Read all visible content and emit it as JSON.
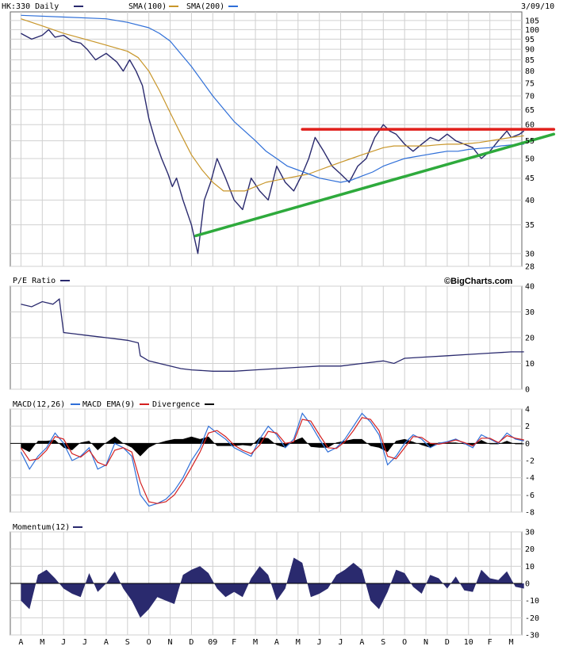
{
  "colors": {
    "price": "#2a2a6e",
    "sma100": "#c8962a",
    "sma200": "#2f6fd8",
    "resistance": "#e0201c",
    "support": "#2eaa3c",
    "macd": "#2f6fd8",
    "macd_ema": "#d42020",
    "divergence": "#000000",
    "momentum": "#2a2a6e",
    "grid": "#d0d0d0"
  },
  "header": {
    "symbol_label": "HK:330 Daily",
    "sma100_label": "SMA(100)",
    "sma200_label": "SMA(200)",
    "date": "3/09/10"
  },
  "pe_panel": {
    "title": "P/E Ratio",
    "brand": "©BigCharts.com"
  },
  "macd_panel": {
    "title": "MACD(12,26)",
    "ema_label": "MACD EMA(9)",
    "divergence_label": "Divergence"
  },
  "momentum_panel": {
    "title": "Momentum(12)"
  },
  "chart_data": [
    {
      "type": "line",
      "panel": "price",
      "title": "HK:330 Daily",
      "scale": "log",
      "ylim": [
        28,
        110
      ],
      "yticks": [
        28,
        30,
        35,
        40,
        45,
        50,
        55,
        60,
        65,
        70,
        75,
        80,
        85,
        90,
        95,
        100,
        105
      ],
      "x_labels": [
        "A",
        "M",
        "J",
        "J",
        "A",
        "S",
        "O",
        "N",
        "D",
        "09",
        "F",
        "M",
        "A",
        "M",
        "J",
        "J",
        "A",
        "S",
        "O",
        "N",
        "D",
        "10",
        "F",
        "M"
      ],
      "series": [
        {
          "name": "HK:330 Daily",
          "key": "price",
          "x": [
            0,
            0.5,
            1,
            1.3,
            1.6,
            2,
            2.4,
            2.8,
            3.1,
            3.5,
            4,
            4.5,
            4.8,
            5.1,
            5.4,
            5.7,
            6,
            6.3,
            6.6,
            6.9,
            7.1,
            7.3,
            7.6,
            8,
            8.3,
            8.6,
            8.9,
            9.2,
            9.6,
            10,
            10.4,
            10.8,
            11.2,
            11.6,
            12,
            12.4,
            12.8,
            13.2,
            13.5,
            13.8,
            14.2,
            14.6,
            15,
            15.4,
            15.8,
            16.2,
            16.6,
            17,
            17.3,
            17.6,
            18,
            18.4,
            18.8,
            19.2,
            19.6,
            20,
            20.4,
            20.8,
            21.2,
            21.6,
            22,
            22.4,
            22.8,
            23,
            23.4,
            23.6
          ],
          "values": [
            98,
            95,
            97,
            100,
            96,
            97,
            94,
            93,
            90,
            85,
            88,
            84,
            80,
            85,
            80,
            74,
            62,
            55,
            50,
            46,
            43,
            45,
            40,
            35,
            30,
            40,
            44,
            50,
            45,
            40,
            38,
            45,
            42,
            40,
            48,
            44,
            42,
            46,
            50,
            56,
            52,
            48,
            46,
            44,
            48,
            50,
            56,
            60,
            58,
            57,
            54,
            52,
            54,
            56,
            55,
            57,
            55,
            54,
            53,
            50,
            52,
            55,
            58,
            56,
            57,
            58
          ]
        },
        {
          "name": "SMA(100)",
          "key": "sma100",
          "x": [
            0,
            1,
            2,
            3,
            4,
            5,
            5.5,
            6,
            6.5,
            7,
            7.5,
            8,
            8.5,
            9,
            9.5,
            10,
            10.5,
            11,
            11.5,
            12,
            12.5,
            13,
            13.5,
            14,
            14.5,
            15,
            15.5,
            16,
            16.5,
            17,
            17.5,
            18,
            18.5,
            19,
            19.5,
            20,
            20.5,
            21,
            21.5,
            22,
            22.5,
            23,
            23.6
          ],
          "values": [
            106,
            102,
            98,
            95,
            92,
            89,
            86,
            80,
            72,
            64,
            57,
            51,
            47,
            44,
            42,
            42,
            42,
            43,
            44,
            44.5,
            45,
            45.5,
            46,
            47,
            48,
            49,
            50,
            51,
            52,
            53,
            53.5,
            53.5,
            53.5,
            53.5,
            53.8,
            54,
            54,
            54.2,
            54.5,
            55,
            55.5,
            56,
            56.5
          ]
        },
        {
          "name": "SMA(200)",
          "key": "sma200",
          "x": [
            0,
            2,
            4,
            5,
            6,
            6.5,
            7,
            8,
            9,
            10,
            11,
            11.5,
            12,
            12.5,
            13,
            13.5,
            14,
            14.5,
            15,
            15.5,
            16,
            16.5,
            17,
            17.5,
            18,
            18.5,
            19,
            19.5,
            20,
            20.5,
            21,
            21.5,
            22,
            22.5,
            23,
            23.6
          ],
          "values": [
            108,
            107,
            106,
            104,
            101,
            98,
            94,
            82,
            70,
            61,
            55,
            52,
            50,
            48,
            47,
            46,
            45,
            44.5,
            44,
            44.5,
            45.5,
            46.5,
            48,
            49,
            50,
            50.5,
            51,
            51.5,
            52,
            52,
            52.5,
            52.8,
            53,
            53.5,
            53.8,
            54
          ]
        }
      ],
      "annotations": [
        {
          "type": "resistance-line",
          "x": [
            13.2,
            25
          ],
          "y": [
            58.5,
            58.5
          ]
        },
        {
          "type": "support-line",
          "x": [
            8.2,
            25
          ],
          "y": [
            33,
            57
          ]
        }
      ]
    },
    {
      "type": "line",
      "panel": "pe",
      "title": "P/E Ratio",
      "ylim": [
        0,
        40
      ],
      "yticks": [
        0,
        10,
        20,
        30,
        40
      ],
      "series": [
        {
          "name": "P/E Ratio",
          "key": "pe",
          "x": [
            0,
            0.5,
            1,
            1.5,
            1.8,
            2,
            2.5,
            3,
            4,
            5,
            5.5,
            5.6,
            6,
            7,
            7.5,
            8,
            9,
            10,
            11,
            12,
            13,
            14,
            15,
            16,
            17,
            17.5,
            18,
            19,
            20,
            21,
            22,
            23,
            23.6
          ],
          "values": [
            33,
            32,
            34,
            33,
            35,
            22,
            21.5,
            21,
            20,
            19,
            18,
            13,
            11,
            9,
            8,
            7.5,
            7,
            7,
            7.5,
            8,
            8.5,
            9,
            9,
            10,
            11,
            10,
            12,
            12.5,
            13,
            13.5,
            14,
            14.5,
            14.5
          ]
        }
      ]
    },
    {
      "type": "line",
      "panel": "macd",
      "title": "MACD(12,26)",
      "ylim": [
        -8,
        4
      ],
      "yticks": [
        -8,
        -6,
        -4,
        -2,
        0,
        2,
        4
      ],
      "series": [
        {
          "name": "MACD(12,26)",
          "key": "macd",
          "x": [
            0,
            0.4,
            0.8,
            1.2,
            1.6,
            2,
            2.4,
            2.8,
            3.2,
            3.6,
            4,
            4.4,
            4.8,
            5.2,
            5.6,
            6,
            6.4,
            6.8,
            7.2,
            7.6,
            8,
            8.4,
            8.8,
            9.2,
            9.6,
            10,
            10.4,
            10.8,
            11.2,
            11.6,
            12,
            12.4,
            12.8,
            13.2,
            13.6,
            14,
            14.4,
            14.8,
            15.2,
            15.6,
            16,
            16.4,
            16.8,
            17.2,
            17.6,
            18,
            18.4,
            18.8,
            19.2,
            19.6,
            20,
            20.4,
            20.8,
            21.2,
            21.6,
            22,
            22.4,
            22.8,
            23.2,
            23.6
          ],
          "values": [
            -1,
            -3,
            -1.5,
            -0.5,
            1.2,
            0,
            -2,
            -1.5,
            -0.5,
            -3,
            -2.5,
            0,
            -0.5,
            -1.5,
            -6,
            -7.3,
            -7,
            -6.5,
            -5.5,
            -4,
            -2,
            -0.5,
            2,
            1.2,
            0.5,
            -0.5,
            -1,
            -1.5,
            0.5,
            2,
            1,
            -0.5,
            0.5,
            3.5,
            2.2,
            0.5,
            -1,
            -0.5,
            0.5,
            2,
            3.5,
            2.5,
            1,
            -2.5,
            -1.5,
            0,
            1,
            0.5,
            -0.5,
            0,
            0.2,
            0.5,
            0,
            -0.5,
            1,
            0.5,
            0,
            1.2,
            0.5,
            0.3
          ]
        },
        {
          "name": "MACD EMA(9)",
          "key": "macd_ema",
          "x": [
            0,
            0.4,
            0.8,
            1.2,
            1.6,
            2,
            2.4,
            2.8,
            3.2,
            3.6,
            4,
            4.4,
            4.8,
            5.2,
            5.6,
            6,
            6.4,
            6.8,
            7.2,
            7.6,
            8,
            8.4,
            8.8,
            9.2,
            9.6,
            10,
            10.4,
            10.8,
            11.2,
            11.6,
            12,
            12.4,
            12.8,
            13.2,
            13.6,
            14,
            14.4,
            14.8,
            15.2,
            15.6,
            16,
            16.4,
            16.8,
            17.2,
            17.6,
            18,
            18.4,
            18.8,
            19.2,
            19.6,
            20,
            20.4,
            20.8,
            21.2,
            21.6,
            22,
            22.4,
            22.8,
            23.2,
            23.6
          ],
          "values": [
            -0.5,
            -2,
            -1.8,
            -0.8,
            0.8,
            0.5,
            -1.2,
            -1.6,
            -0.8,
            -2.2,
            -2.6,
            -0.8,
            -0.5,
            -1,
            -4.5,
            -6.8,
            -7,
            -6.8,
            -6,
            -4.5,
            -2.8,
            -1,
            1.2,
            1.5,
            0.8,
            -0.2,
            -0.8,
            -1.2,
            -0.2,
            1.4,
            1.2,
            0,
            0.2,
            2.8,
            2.6,
            1,
            -0.5,
            -0.6,
            0.2,
            1.5,
            3,
            2.8,
            1.5,
            -1.5,
            -1.8,
            -0.5,
            0.8,
            0.7,
            0,
            -0.1,
            0.1,
            0.4,
            0.1,
            -0.3,
            0.6,
            0.6,
            0.1,
            0.9,
            0.6,
            0.4
          ]
        },
        {
          "name": "Divergence",
          "key": "divergence",
          "x": [
            0,
            0.4,
            0.8,
            1.2,
            1.6,
            2,
            2.4,
            2.8,
            3.2,
            3.6,
            4,
            4.4,
            4.8,
            5.2,
            5.6,
            6,
            6.4,
            6.8,
            7.2,
            7.6,
            8,
            8.4,
            8.8,
            9.2,
            9.6,
            10,
            10.4,
            10.8,
            11.2,
            11.6,
            12,
            12.4,
            12.8,
            13.2,
            13.6,
            14,
            14.4,
            14.8,
            15.2,
            15.6,
            16,
            16.4,
            16.8,
            17.2,
            17.6,
            18,
            18.4,
            18.8,
            19.2,
            19.6,
            20,
            20.4,
            20.8,
            21.2,
            21.6,
            22,
            22.4,
            22.8,
            23.2,
            23.6
          ],
          "values": [
            -0.5,
            -1,
            0.3,
            0.3,
            0.4,
            -0.5,
            -0.8,
            0.1,
            0.3,
            -0.8,
            0.1,
            0.8,
            0,
            -0.5,
            -1.5,
            -0.5,
            0,
            0.3,
            0.5,
            0.5,
            0.8,
            0.5,
            0.8,
            -0.3,
            -0.3,
            -0.3,
            -0.2,
            -0.3,
            0.7,
            0.6,
            -0.2,
            -0.5,
            0.3,
            0.7,
            -0.4,
            -0.5,
            -0.5,
            0.1,
            0.3,
            0.5,
            0.5,
            -0.3,
            -0.5,
            -1,
            0.3,
            0.5,
            0.2,
            -0.2,
            -0.5,
            0.1,
            0.1,
            0.1,
            -0.1,
            -0.2,
            0.4,
            -0.1,
            -0.1,
            0.3,
            -0.1,
            -0.1
          ]
        }
      ]
    },
    {
      "type": "bar",
      "panel": "momentum",
      "title": "Momentum(12)",
      "ylim": [
        -30,
        30
      ],
      "yticks": [
        -30,
        -20,
        -10,
        0,
        10,
        20,
        30
      ],
      "series": [
        {
          "name": "Momentum(12)",
          "key": "momentum",
          "x": [
            0,
            0.4,
            0.8,
            1.2,
            1.6,
            2,
            2.4,
            2.8,
            3.2,
            3.6,
            4,
            4.4,
            4.8,
            5.2,
            5.6,
            6,
            6.4,
            6.8,
            7.2,
            7.6,
            8,
            8.4,
            8.8,
            9.2,
            9.6,
            10,
            10.4,
            10.8,
            11.2,
            11.6,
            12,
            12.4,
            12.8,
            13.2,
            13.6,
            14,
            14.4,
            14.8,
            15.2,
            15.6,
            16,
            16.4,
            16.8,
            17.2,
            17.6,
            18,
            18.4,
            18.8,
            19.2,
            19.6,
            20,
            20.4,
            20.8,
            21.2,
            21.6,
            22,
            22.4,
            22.8,
            23.2,
            23.6
          ],
          "values": [
            -10,
            -15,
            5,
            8,
            3,
            -3,
            -6,
            -8,
            6,
            -5,
            0,
            7,
            -3,
            -10,
            -20,
            -15,
            -8,
            -10,
            -12,
            5,
            8,
            10,
            6,
            -3,
            -8,
            -5,
            -8,
            3,
            10,
            5,
            -10,
            -3,
            15,
            12,
            -8,
            -6,
            -3,
            5,
            8,
            12,
            8,
            -10,
            -15,
            -5,
            8,
            6,
            -2,
            -6,
            5,
            3,
            -3,
            4,
            -4,
            -5,
            8,
            3,
            2,
            7,
            -2,
            -3
          ]
        }
      ]
    }
  ]
}
